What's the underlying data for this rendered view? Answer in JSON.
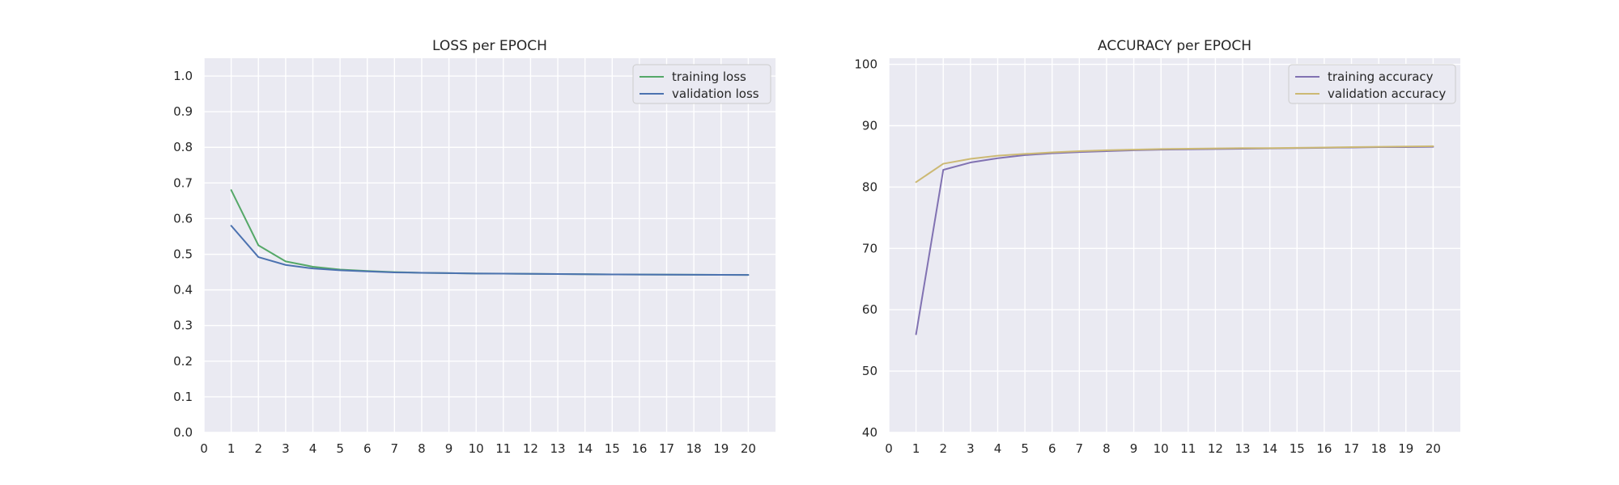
{
  "chart_data": [
    {
      "type": "line",
      "title": "LOSS per EPOCH",
      "xlabel": "",
      "ylabel": "",
      "xlim": [
        0,
        21
      ],
      "ylim": [
        0,
        1.05
      ],
      "x_ticks": [
        0,
        1,
        2,
        3,
        4,
        5,
        6,
        7,
        8,
        9,
        10,
        11,
        12,
        13,
        14,
        15,
        16,
        17,
        18,
        19,
        20
      ],
      "y_ticks": [
        0.0,
        0.1,
        0.2,
        0.3,
        0.4,
        0.5,
        0.6,
        0.7,
        0.8,
        0.9,
        1.0
      ],
      "y_tick_labels": [
        "0.0",
        "0.1",
        "0.2",
        "0.3",
        "0.4",
        "0.5",
        "0.6",
        "0.7",
        "0.8",
        "0.9",
        "1.0"
      ],
      "grid": true,
      "legend_position": "top-right",
      "x": [
        1,
        2,
        3,
        4,
        5,
        6,
        7,
        8,
        9,
        10,
        11,
        12,
        13,
        14,
        15,
        16,
        17,
        18,
        19,
        20
      ],
      "series": [
        {
          "name": "training loss",
          "color": "#55a868",
          "values": [
            0.68,
            0.525,
            0.48,
            0.465,
            0.457,
            0.453,
            0.45,
            0.448,
            0.447,
            0.446,
            0.4455,
            0.445,
            0.4445,
            0.444,
            0.4435,
            0.443,
            0.4428,
            0.4425,
            0.4423,
            0.442
          ]
        },
        {
          "name": "validation loss",
          "color": "#4c72b0",
          "values": [
            0.58,
            0.492,
            0.47,
            0.46,
            0.455,
            0.452,
            0.449,
            0.448,
            0.447,
            0.446,
            0.4455,
            0.445,
            0.4445,
            0.444,
            0.4435,
            0.443,
            0.4428,
            0.4425,
            0.4423,
            0.442
          ]
        }
      ]
    },
    {
      "type": "line",
      "title": "ACCURACY per EPOCH",
      "xlabel": "",
      "ylabel": "",
      "xlim": [
        0,
        21
      ],
      "ylim": [
        40,
        101
      ],
      "x_ticks": [
        0,
        1,
        2,
        3,
        4,
        5,
        6,
        7,
        8,
        9,
        10,
        11,
        12,
        13,
        14,
        15,
        16,
        17,
        18,
        19,
        20
      ],
      "y_ticks": [
        40,
        50,
        60,
        70,
        80,
        90,
        100
      ],
      "y_tick_labels": [
        "40",
        "50",
        "60",
        "70",
        "80",
        "90",
        "100"
      ],
      "grid": true,
      "legend_position": "top-right",
      "x": [
        1,
        2,
        3,
        4,
        5,
        6,
        7,
        8,
        9,
        10,
        11,
        12,
        13,
        14,
        15,
        16,
        17,
        18,
        19,
        20
      ],
      "series": [
        {
          "name": "training accuracy",
          "color": "#8172b2",
          "values": [
            56.0,
            82.8,
            84.0,
            84.7,
            85.2,
            85.5,
            85.7,
            85.85,
            86.0,
            86.1,
            86.15,
            86.2,
            86.25,
            86.3,
            86.35,
            86.4,
            86.45,
            86.5,
            86.5,
            86.55
          ]
        },
        {
          "name": "validation accuracy",
          "color": "#ccb974",
          "values": [
            80.8,
            83.8,
            84.6,
            85.1,
            85.4,
            85.65,
            85.85,
            86.0,
            86.1,
            86.2,
            86.25,
            86.3,
            86.35,
            86.35,
            86.4,
            86.45,
            86.5,
            86.55,
            86.6,
            86.65
          ]
        }
      ]
    }
  ]
}
